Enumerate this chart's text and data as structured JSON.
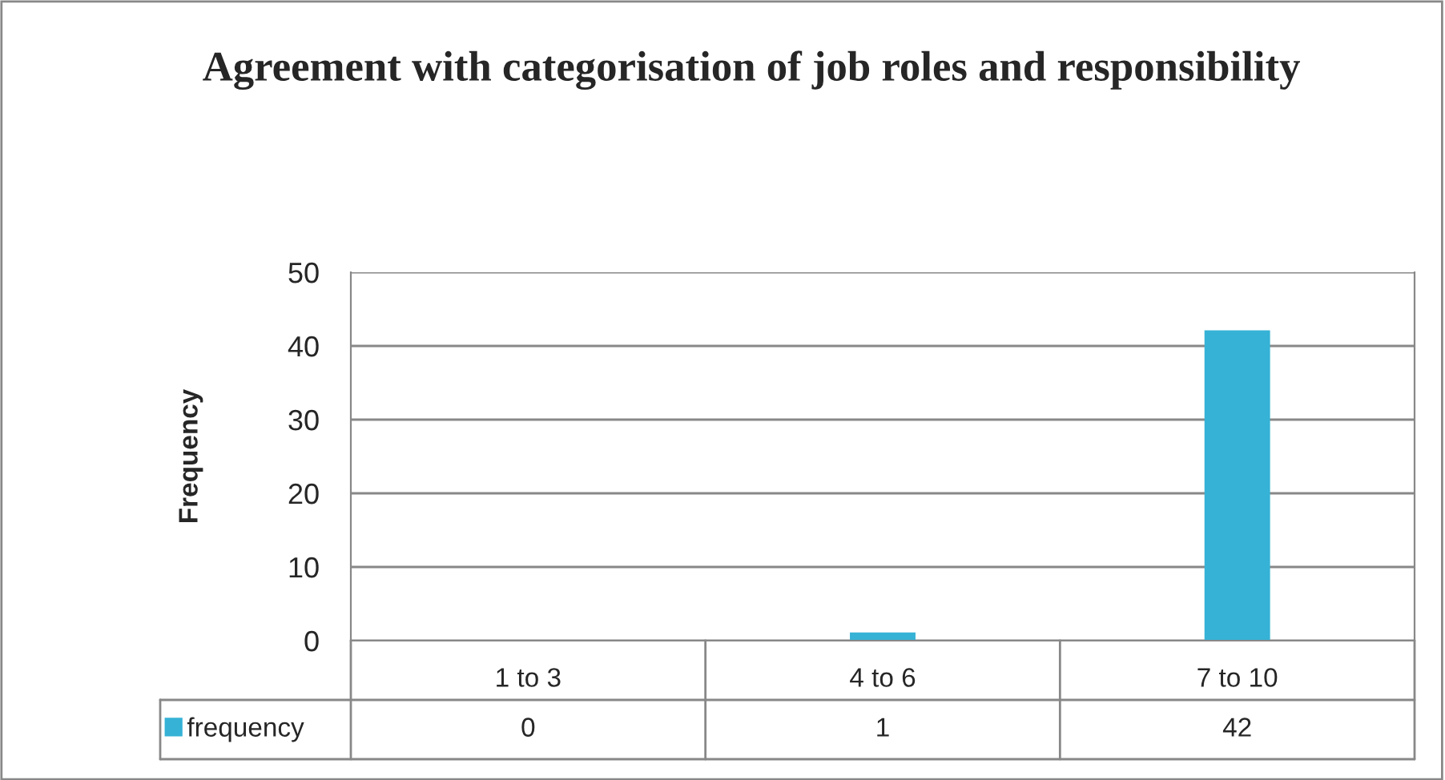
{
  "chart_data": {
    "type": "bar",
    "title": "Agreement with categorisation of job roles and responsibility",
    "ylabel": "Frequency",
    "categories": [
      "1 to 3",
      "4 to 6",
      "7 to 10"
    ],
    "series": [
      {
        "name": "frequency",
        "color": "#36b2d6",
        "values": [
          0,
          1,
          42
        ]
      }
    ],
    "ylim": [
      0,
      50
    ],
    "yticks": [
      0,
      10,
      20,
      30,
      40,
      50
    ],
    "grid": "y",
    "legend": "bottom",
    "data_labels": true
  }
}
